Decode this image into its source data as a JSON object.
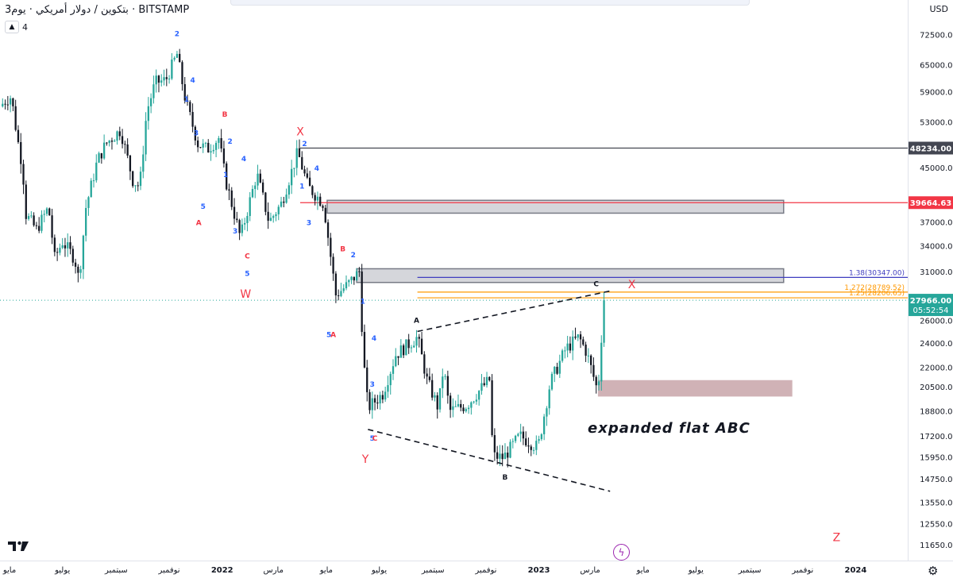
{
  "legend": {
    "title": "بتكوين / دولار أمريكي · يوم3 · BITSTAMP",
    "collapse_icon": "chevron-up-icon",
    "indicator_count": "4"
  },
  "currency": "USD",
  "colors": {
    "up": "#26a69a",
    "down": "#131722",
    "wave_blue": "#2962ff",
    "wave_red": "#f23645",
    "level_dark": "#434651",
    "level_red": "#f23645",
    "fib_purple": "#3f3dbf",
    "fib_orange": "#ff9800",
    "zone_gray": "#b2b5be",
    "zone_brown": "#a9727a"
  },
  "chart_data": {
    "type": "candlestick",
    "symbol": "BTCUSD",
    "exchange": "BITSTAMP",
    "timeframe": "3D",
    "y_axis": {
      "scale": "log",
      "ylim": [
        11000,
        82000
      ],
      "ticks": [
        72500,
        65000,
        59000,
        53000,
        48234,
        45000,
        39664.63,
        37000,
        34000,
        31000,
        27966,
        26000,
        24000,
        22000,
        20500,
        18800,
        17200,
        15950,
        14750,
        13550,
        12550,
        11650
      ],
      "tick_labels": [
        "72500.00",
        "65000.00",
        "59000.00",
        "53000.00",
        "48234.00",
        "45000.00",
        "39664.63",
        "37000.00",
        "34000.00",
        "31000.00",
        "27966.00",
        "26000.00",
        "24000.00",
        "22000.00",
        "20500.00",
        "18800.00",
        "17200.00",
        "15950.00",
        "14750.00",
        "13550.00",
        "12550.00",
        "11650.00"
      ]
    },
    "x_axis": {
      "range": [
        "2021-04-20",
        "2024-03-01"
      ],
      "ticks": [
        "2021-05-01",
        "2021-07-01",
        "2021-09-01",
        "2021-11-01",
        "2022-01-01",
        "2022-03-01",
        "2022-05-01",
        "2022-07-01",
        "2022-09-01",
        "2022-11-01",
        "2023-01-01",
        "2023-03-01",
        "2023-05-01",
        "2023-07-01",
        "2023-09-01",
        "2023-11-01",
        "2024-01-01"
      ],
      "tick_labels": [
        "مايو",
        "يوليو",
        "سبتمبر",
        "نوفمبر",
        "2022",
        "مارس",
        "مايو",
        "يوليو",
        "سبتمبر",
        "نوفمبر",
        "2023",
        "مارس",
        "مايو",
        "يوليو",
        "سبتمبر",
        "نوفمبر",
        "2024"
      ]
    },
    "last_price": {
      "value": 27966.0,
      "label": "27966.00",
      "countdown": "05:52:54"
    },
    "price_path": [
      [
        "2021-04-20",
        56000
      ],
      [
        "2021-04-28",
        57500
      ],
      [
        "2021-05-03",
        58000
      ],
      [
        "2021-05-10",
        50000
      ],
      [
        "2021-05-16",
        45000
      ],
      [
        "2021-05-20",
        38000
      ],
      [
        "2021-06-01",
        36000
      ],
      [
        "2021-06-15",
        39000
      ],
      [
        "2021-06-22",
        32500
      ],
      [
        "2021-07-01",
        34500
      ],
      [
        "2021-07-15",
        32500
      ],
      [
        "2021-07-20",
        30000
      ],
      [
        "2021-07-28",
        39000
      ],
      [
        "2021-08-10",
        46000
      ],
      [
        "2021-08-20",
        49000
      ],
      [
        "2021-09-06",
        51500
      ],
      [
        "2021-09-20",
        43000
      ],
      [
        "2021-09-28",
        42000
      ],
      [
        "2021-10-06",
        55000
      ],
      [
        "2021-10-16",
        61000
      ],
      [
        "2021-10-28",
        61500
      ],
      [
        "2021-11-10",
        67500
      ],
      [
        "2021-11-20",
        57000
      ],
      [
        "2021-12-04",
        49000
      ],
      [
        "2021-12-15",
        48000
      ],
      [
        "2021-12-28",
        50000
      ],
      [
        "2022-01-05",
        43000
      ],
      [
        "2022-01-22",
        35000
      ],
      [
        "2022-02-10",
        44000
      ],
      [
        "2022-02-24",
        37000
      ],
      [
        "2022-03-10",
        39500
      ],
      [
        "2022-03-29",
        47500
      ],
      [
        "2022-04-10",
        42000
      ],
      [
        "2022-04-28",
        39500
      ],
      [
        "2022-05-09",
        30500
      ],
      [
        "2022-05-12",
        28500
      ],
      [
        "2022-05-25",
        29500
      ],
      [
        "2022-06-08",
        31000
      ],
      [
        "2022-06-13",
        22500
      ],
      [
        "2022-06-18",
        19000
      ],
      [
        "2022-07-05",
        20000
      ],
      [
        "2022-07-20",
        23000
      ],
      [
        "2022-08-14",
        24500
      ],
      [
        "2022-08-25",
        21000
      ],
      [
        "2022-09-07",
        19000
      ],
      [
        "2022-09-13",
        22000
      ],
      [
        "2022-09-20",
        18800
      ],
      [
        "2022-10-10",
        19200
      ],
      [
        "2022-10-28",
        20500
      ],
      [
        "2022-11-05",
        21000
      ],
      [
        "2022-11-09",
        16000
      ],
      [
        "2022-11-21",
        15900
      ],
      [
        "2022-12-10",
        17200
      ],
      [
        "2022-12-31",
        16500
      ],
      [
        "2023-01-14",
        20800
      ],
      [
        "2023-02-01",
        23500
      ],
      [
        "2023-02-16",
        24500
      ],
      [
        "2023-02-25",
        23200
      ],
      [
        "2023-03-10",
        20100
      ],
      [
        "2023-03-14",
        24500
      ],
      [
        "2023-03-17",
        27966
      ]
    ],
    "horizontal_levels": [
      {
        "value": 48234.0,
        "label": "48234.00",
        "color": "#434651"
      },
      {
        "value": 39664.63,
        "label": "39664.63",
        "color": "#f23645"
      }
    ],
    "fib_levels": [
      {
        "ratio": "1.38",
        "value": 30347.0,
        "label": "1.38(30347.00)",
        "color": "#3f3dbf"
      },
      {
        "ratio": "1.272",
        "value": 28789.52,
        "label": "1.272(28789.52)",
        "color": "#ff9800"
      },
      {
        "ratio": "1.25",
        "value": 28206.65,
        "label": "1.25(28206.65)",
        "color": "#ff9800"
      }
    ],
    "zones": [
      {
        "from": "2022-05-02",
        "to": "2023-10-10",
        "low": 38200,
        "high": 40000,
        "color": "#b2b5be"
      },
      {
        "from": "2022-06-05",
        "to": "2023-10-10",
        "low": 29800,
        "high": 31300,
        "color": "#b2b5be"
      },
      {
        "from": "2023-03-10",
        "to": "2023-10-20",
        "low": 19800,
        "high": 21000,
        "color": "#a9727a"
      }
    ],
    "trend_lines": [
      {
        "from": [
          "2022-08-14",
          25000
        ],
        "to": [
          "2023-03-24",
          28900
        ],
        "style": "dashed"
      },
      {
        "from": [
          "2022-06-18",
          17600
        ],
        "to": [
          "2023-03-24",
          14100
        ],
        "style": "dashed"
      }
    ],
    "wave_labels": [
      {
        "text": "2",
        "date": "2021-11-10",
        "price": 72000,
        "color": "blue"
      },
      {
        "text": "4",
        "date": "2021-11-28",
        "price": 61000,
        "color": "blue"
      },
      {
        "text": "1",
        "date": "2021-11-21",
        "price": 57000,
        "color": "blue"
      },
      {
        "text": "3",
        "date": "2021-12-02",
        "price": 50500,
        "color": "blue"
      },
      {
        "text": "5",
        "date": "2021-12-10",
        "price": 38800,
        "color": "blue"
      },
      {
        "text": "A",
        "date": "2021-12-05",
        "price": 36600,
        "color": "red"
      },
      {
        "text": "B",
        "date": "2022-01-04",
        "price": 54000,
        "color": "red"
      },
      {
        "text": "2",
        "date": "2022-01-10",
        "price": 49000,
        "color": "blue"
      },
      {
        "text": "1",
        "date": "2022-01-05",
        "price": 43500,
        "color": "blue"
      },
      {
        "text": "4",
        "date": "2022-01-26",
        "price": 46000,
        "color": "blue"
      },
      {
        "text": "3",
        "date": "2022-01-16",
        "price": 35500,
        "color": "blue"
      },
      {
        "text": "C",
        "date": "2022-01-30",
        "price": 32500,
        "color": "red"
      },
      {
        "text": "5",
        "date": "2022-01-30",
        "price": 30500,
        "color": "blue"
      },
      {
        "text": "X",
        "date": "2022-04-01",
        "price": 50500,
        "color": "red"
      },
      {
        "text": "2",
        "date": "2022-04-06",
        "price": 48600,
        "color": "blue"
      },
      {
        "text": "4",
        "date": "2022-04-20",
        "price": 44500,
        "color": "blue"
      },
      {
        "text": "1",
        "date": "2022-04-03",
        "price": 41700,
        "color": "blue"
      },
      {
        "text": "3",
        "date": "2022-04-11",
        "price": 36600,
        "color": "blue"
      },
      {
        "text": "W",
        "date": "2022-01-28",
        "price": 28200,
        "color": "red"
      },
      {
        "text": "B",
        "date": "2022-05-20",
        "price": 33300,
        "color": "red"
      },
      {
        "text": "2",
        "date": "2022-06-01",
        "price": 32600,
        "color": "blue"
      },
      {
        "text": "1",
        "date": "2022-06-12",
        "price": 27600,
        "color": "blue"
      },
      {
        "text": "5",
        "date": "2022-05-04",
        "price": 24500,
        "color": "blue"
      },
      {
        "text": "A",
        "date": "2022-05-09",
        "price": 24500,
        "color": "red"
      },
      {
        "text": "4",
        "date": "2022-06-25",
        "price": 24200,
        "color": "blue"
      },
      {
        "text": "3",
        "date": "2022-06-23",
        "price": 20500,
        "color": "blue"
      },
      {
        "text": "5",
        "date": "2022-06-23",
        "price": 16900,
        "color": "blue"
      },
      {
        "text": "C",
        "date": "2022-06-26",
        "price": 16900,
        "color": "red"
      },
      {
        "text": "Y",
        "date": "2022-06-15",
        "price": 15600,
        "color": "red"
      },
      {
        "text": "A",
        "date": "2022-08-13",
        "price": 25800,
        "color": "dark"
      },
      {
        "text": "B",
        "date": "2022-11-23",
        "price": 14700,
        "color": "dark"
      },
      {
        "text": "C",
        "date": "2023-03-08",
        "price": 29400,
        "color": "dark"
      },
      {
        "text": "X",
        "date": "2023-04-18",
        "price": 29200,
        "color": "red"
      },
      {
        "text": "Z",
        "date": "2023-12-10",
        "price": 11800,
        "color": "red"
      }
    ],
    "annotation": "expanded flat  ABC"
  }
}
